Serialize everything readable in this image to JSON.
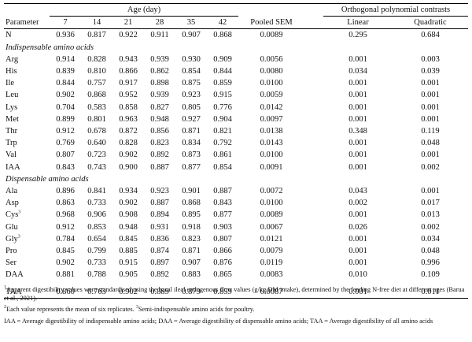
{
  "headers": {
    "parameter": "Parameter",
    "age_group": "Age (day)",
    "contrast_group": "Orthogonal polynomial contrasts",
    "ages": [
      "7",
      "14",
      "21",
      "28",
      "35",
      "42"
    ],
    "pooled_sem": "Pooled SEM",
    "linear": "Linear",
    "quadratic": "Quadratic"
  },
  "n_row": {
    "label": "N",
    "values": [
      "0.936",
      "0.817",
      "0.922",
      "0.911",
      "0.907",
      "0.868"
    ],
    "sem": "0.0089",
    "linear": "0.295",
    "quadratic": "0.684"
  },
  "sections": {
    "indispensable": "Indispensable amino acids",
    "dispensable": "Dispensable amino acids"
  },
  "indispensable_rows": [
    {
      "label": "Arg",
      "sup": "",
      "values": [
        "0.914",
        "0.828",
        "0.943",
        "0.939",
        "0.930",
        "0.909"
      ],
      "sem": "0.0056",
      "linear": "0.001",
      "quadratic": "0.003"
    },
    {
      "label": "His",
      "sup": "",
      "values": [
        "0.839",
        "0.810",
        "0.866",
        "0.862",
        "0.854",
        "0.844"
      ],
      "sem": "0.0080",
      "linear": "0.034",
      "quadratic": "0.039"
    },
    {
      "label": "Ile",
      "sup": "",
      "values": [
        "0.844",
        "0.757",
        "0.917",
        "0.898",
        "0.875",
        "0.859"
      ],
      "sem": "0.0100",
      "linear": "0.001",
      "quadratic": "0.001"
    },
    {
      "label": "Leu",
      "sup": "",
      "values": [
        "0.902",
        "0.868",
        "0.952",
        "0.939",
        "0.923",
        "0.915"
      ],
      "sem": "0.0059",
      "linear": "0.001",
      "quadratic": "0.001"
    },
    {
      "label": "Lys",
      "sup": "",
      "values": [
        "0.704",
        "0.583",
        "0.858",
        "0.827",
        "0.805",
        "0.776"
      ],
      "sem": "0.0142",
      "linear": "0.001",
      "quadratic": "0.001"
    },
    {
      "label": "Met",
      "sup": "",
      "values": [
        "0.899",
        "0.801",
        "0.963",
        "0.948",
        "0.927",
        "0.904"
      ],
      "sem": "0.0097",
      "linear": "0.001",
      "quadratic": "0.001"
    },
    {
      "label": "Thr",
      "sup": "",
      "values": [
        "0.912",
        "0.678",
        "0.872",
        "0.856",
        "0.871",
        "0.821"
      ],
      "sem": "0.0138",
      "linear": "0.348",
      "quadratic": "0.119"
    },
    {
      "label": "Trp",
      "sup": "",
      "values": [
        "0.769",
        "0.640",
        "0.828",
        "0.823",
        "0.834",
        "0.792"
      ],
      "sem": "0.0143",
      "linear": "0.001",
      "quadratic": "0.048"
    },
    {
      "label": "Val",
      "sup": "",
      "values": [
        "0.807",
        "0.723",
        "0.902",
        "0.892",
        "0.873",
        "0.861"
      ],
      "sem": "0.0100",
      "linear": "0.001",
      "quadratic": "0.001"
    },
    {
      "label": "IAA",
      "sup": "",
      "values": [
        "0.843",
        "0.743",
        "0.900",
        "0.887",
        "0.877",
        "0.854"
      ],
      "sem": "0.0091",
      "linear": "0.001",
      "quadratic": "0.002"
    }
  ],
  "dispensable_rows": [
    {
      "label": "Ala",
      "sup": "",
      "values": [
        "0.896",
        "0.841",
        "0.934",
        "0.923",
        "0.901",
        "0.887"
      ],
      "sem": "0.0072",
      "linear": "0.043",
      "quadratic": "0.001"
    },
    {
      "label": "Asp",
      "sup": "",
      "values": [
        "0.863",
        "0.733",
        "0.902",
        "0.887",
        "0.868",
        "0.843"
      ],
      "sem": "0.0100",
      "linear": "0.002",
      "quadratic": "0.017"
    },
    {
      "label": "Cys",
      "sup": "3",
      "values": [
        "0.968",
        "0.906",
        "0.908",
        "0.894",
        "0.895",
        "0.877"
      ],
      "sem": "0.0089",
      "linear": "0.001",
      "quadratic": "0.013"
    },
    {
      "label": "Glu",
      "sup": "",
      "values": [
        "0.912",
        "0.853",
        "0.948",
        "0.931",
        "0.918",
        "0.903"
      ],
      "sem": "0.0067",
      "linear": "0.026",
      "quadratic": "0.002"
    },
    {
      "label": "Gly",
      "sup": "3",
      "values": [
        "0.784",
        "0.654",
        "0.845",
        "0.836",
        "0.823",
        "0.807"
      ],
      "sem": "0.0121",
      "linear": "0.001",
      "quadratic": "0.034"
    },
    {
      "label": "Pro",
      "sup": "",
      "values": [
        "0.845",
        "0.799",
        "0.885",
        "0.874",
        "0.871",
        "0.866"
      ],
      "sem": "0.0079",
      "linear": "0.001",
      "quadratic": "0.048"
    },
    {
      "label": "Ser",
      "sup": "",
      "values": [
        "0.902",
        "0.733",
        "0.915",
        "0.897",
        "0.907",
        "0.876"
      ],
      "sem": "0.0119",
      "linear": "0.001",
      "quadratic": "0.996"
    },
    {
      "label": "DAA",
      "sup": "",
      "values": [
        "0.881",
        "0.788",
        "0.905",
        "0.892",
        "0.883",
        "0.865"
      ],
      "sem": "0.0083",
      "linear": "0.010",
      "quadratic": "0.109"
    }
  ],
  "taa_row": {
    "label": "TAA",
    "values": [
      "0.860",
      "0.763",
      "0.902",
      "0.889",
      "0.879",
      "0.859"
    ],
    "sem": "0.0087",
    "linear": "0.001",
    "quadratic": "0.011"
  },
  "footnotes": {
    "note1_sup": "1",
    "note1": "Apparent digestibility values were standardised using the basal ileal endogenous flow values (g/kg DM intake), determined by the feeding N-free diet at different ages (Barua et al., 2021).",
    "note2_sup": "2",
    "note2": "Each value represents the mean of six replicates. ",
    "note3_sup": "3",
    "note3": "Semi-indispensable amino acids for poultry.",
    "abbrev": "IAA = Average digestibility of indispensable amino acids; DAA = Average digestibility of dispensable amino acids; TAA = Average digestibility of all amino acids"
  }
}
